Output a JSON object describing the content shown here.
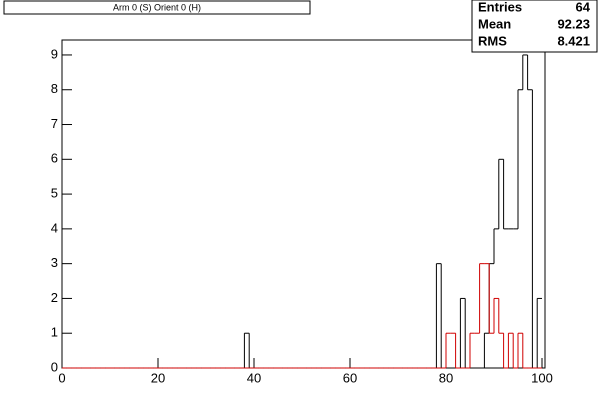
{
  "chart_data": {
    "type": "histogram",
    "title": "Arm 0 (S) Orient 0 (H)",
    "stats": [
      {
        "label": "Entries",
        "value": "64"
      },
      {
        "label": "Mean",
        "value": "92.23"
      },
      {
        "label": "RMS",
        "value": "8.421"
      }
    ],
    "bins": [
      0,
      1,
      2,
      3,
      4,
      5,
      6,
      7,
      8,
      9,
      10,
      11,
      12,
      13,
      14,
      15,
      16,
      17,
      18,
      19,
      20,
      21,
      22,
      23,
      24,
      25,
      26,
      27,
      28,
      29,
      30,
      31,
      32,
      33,
      34,
      35,
      36,
      37,
      38,
      39,
      40,
      41,
      42,
      43,
      44,
      45,
      46,
      47,
      48,
      49,
      50,
      51,
      52,
      53,
      54,
      55,
      56,
      57,
      58,
      59,
      60,
      61,
      62,
      63,
      64,
      65,
      66,
      67,
      68,
      69,
      70,
      71,
      72,
      73,
      74,
      75,
      76,
      77,
      78,
      79,
      80,
      81,
      82,
      83,
      84,
      85,
      86,
      87,
      88,
      89,
      90,
      91,
      92,
      93,
      94,
      95,
      96,
      97,
      98,
      99,
      100
    ],
    "series": [
      {
        "color": "#000000",
        "values": [
          0,
          0,
          0,
          0,
          0,
          0,
          0,
          0,
          0,
          0,
          0,
          0,
          0,
          0,
          0,
          0,
          0,
          0,
          0,
          0,
          0,
          0,
          0,
          0,
          0,
          0,
          0,
          0,
          0,
          0,
          0,
          0,
          0,
          0,
          0,
          0,
          0,
          0,
          1,
          0,
          0,
          0,
          0,
          0,
          0,
          0,
          0,
          0,
          0,
          0,
          0,
          0,
          0,
          0,
          0,
          0,
          0,
          0,
          0,
          0,
          0,
          0,
          0,
          0,
          0,
          0,
          0,
          0,
          0,
          0,
          0,
          0,
          0,
          0,
          0,
          0,
          0,
          0,
          3,
          0,
          0,
          0,
          0,
          2,
          0,
          0,
          0,
          0,
          1,
          3,
          4,
          6,
          4,
          4,
          4,
          8,
          9,
          8,
          0,
          2
        ]
      },
      {
        "color": "#d00000",
        "values": [
          0,
          0,
          0,
          0,
          0,
          0,
          0,
          0,
          0,
          0,
          0,
          0,
          0,
          0,
          0,
          0,
          0,
          0,
          0,
          0,
          0,
          0,
          0,
          0,
          0,
          0,
          0,
          0,
          0,
          0,
          0,
          0,
          0,
          0,
          0,
          0,
          0,
          0,
          0,
          0,
          0,
          0,
          0,
          0,
          0,
          0,
          0,
          0,
          0,
          0,
          0,
          0,
          0,
          0,
          0,
          0,
          0,
          0,
          0,
          0,
          0,
          0,
          0,
          0,
          0,
          0,
          0,
          0,
          0,
          0,
          0,
          0,
          0,
          0,
          0,
          0,
          0,
          0,
          0,
          0,
          1,
          1,
          0,
          0,
          0,
          1,
          1,
          3,
          3,
          1,
          2,
          1,
          0,
          1,
          0,
          1,
          0,
          0,
          0,
          0
        ]
      }
    ],
    "xlim": [
      0,
      100
    ],
    "xticks": [
      0,
      20,
      40,
      60,
      80,
      100
    ],
    "ylim": [
      0,
      9.43
    ],
    "yticks": [
      0,
      1,
      2,
      3,
      4,
      5,
      6,
      7,
      8,
      9
    ]
  }
}
